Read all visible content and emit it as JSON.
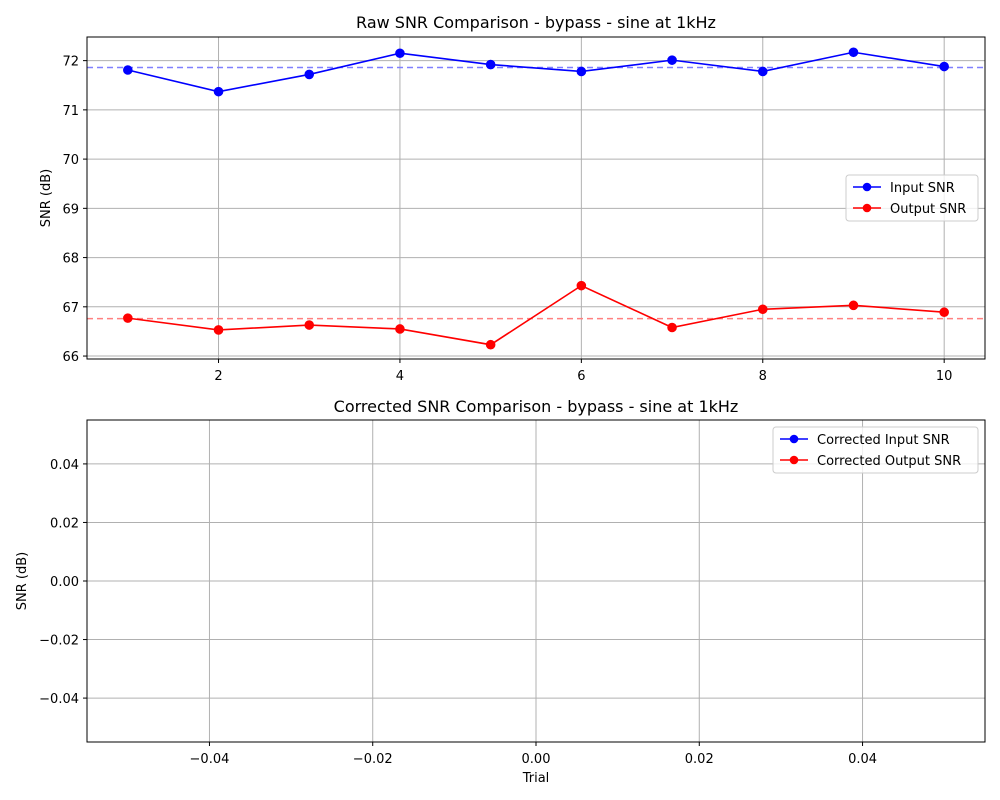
{
  "chart_data": [
    {
      "type": "line",
      "title": "Raw SNR Comparison - bypass - sine at 1kHz",
      "xlabel": "",
      "ylabel": "SNR (dB)",
      "xlim": [
        0.55,
        10.45
      ],
      "ylim": [
        65.94,
        72.48
      ],
      "xticks": [
        2,
        4,
        6,
        8,
        10
      ],
      "yticks": [
        66,
        67,
        68,
        69,
        70,
        71,
        72
      ],
      "grid": true,
      "legend_position": "center-right",
      "x": [
        1,
        2,
        3,
        4,
        5,
        6,
        7,
        8,
        9,
        10
      ],
      "series": [
        {
          "name": "Input SNR",
          "color": "#0000ff",
          "marker": "circle",
          "values": [
            71.81,
            71.37,
            71.72,
            72.15,
            71.92,
            71.78,
            72.01,
            71.78,
            72.17,
            71.88
          ],
          "mean": 71.86,
          "mean_color": "#8080ff"
        },
        {
          "name": "Output SNR",
          "color": "#ff0000",
          "marker": "circle",
          "values": [
            66.77,
            66.53,
            66.63,
            66.55,
            66.23,
            67.43,
            66.58,
            66.95,
            67.03,
            66.89
          ],
          "mean": 66.76,
          "mean_color": "#ff8080"
        }
      ]
    },
    {
      "type": "line",
      "title": "Corrected SNR Comparison - bypass - sine at 1kHz",
      "xlabel": "Trial",
      "ylabel": "SNR (dB)",
      "xlim": [
        -0.055,
        0.055
      ],
      "ylim": [
        -0.055,
        0.055
      ],
      "xticks": [
        -0.04,
        -0.02,
        0.0,
        0.02,
        0.04
      ],
      "xtick_labels": [
        "−0.04",
        "−0.02",
        "0.00",
        "0.02",
        "0.04"
      ],
      "yticks": [
        -0.04,
        -0.02,
        0.0,
        0.02,
        0.04
      ],
      "ytick_labels": [
        "−0.04",
        "−0.02",
        "0.00",
        "0.02",
        "0.04"
      ],
      "grid": true,
      "legend_position": "top-right",
      "x": [],
      "series": [
        {
          "name": "Corrected Input SNR",
          "color": "#0000ff",
          "marker": "circle",
          "values": []
        },
        {
          "name": "Corrected Output SNR",
          "color": "#ff0000",
          "marker": "circle",
          "values": []
        }
      ]
    }
  ]
}
